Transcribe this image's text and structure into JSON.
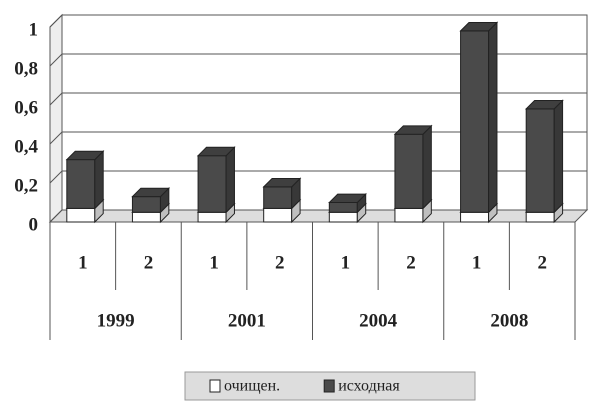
{
  "chart_data": {
    "type": "bar3d-stacked",
    "categories": [
      "1",
      "2",
      "1",
      "2",
      "1",
      "2",
      "1",
      "2"
    ],
    "groups": [
      "1999",
      "2001",
      "2004",
      "2008"
    ],
    "series": [
      {
        "name": "очищен.",
        "color": "#ffffff",
        "values": [
          0.07,
          0.05,
          0.05,
          0.07,
          0.05,
          0.07,
          0.05,
          0.05
        ]
      },
      {
        "name": "исходная",
        "color": "#4a4a4a",
        "values": [
          0.25,
          0.08,
          0.29,
          0.11,
          0.05,
          0.38,
          0.93,
          0.53
        ]
      }
    ],
    "ylim": [
      0,
      1
    ],
    "yticks": [
      0,
      {
        "value": 0.2,
        "label": "0,2"
      },
      {
        "value": 0.4,
        "label": "0,4"
      },
      {
        "value": 0.6,
        "label": "0,6"
      },
      {
        "value": 0.8,
        "label": "0,8"
      },
      1
    ],
    "grid": true,
    "legend": "bottom"
  }
}
